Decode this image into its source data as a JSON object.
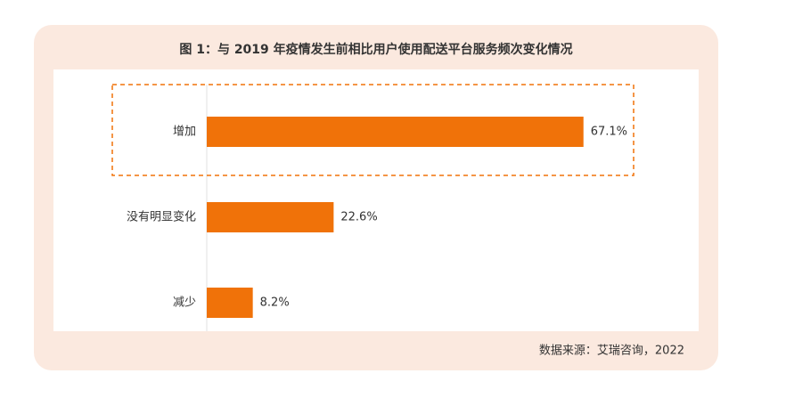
{
  "chart_data": {
    "type": "hbar",
    "title": "图 1：与 2019 年疫情发生前相比用户使用配送平台服务频次变化情况",
    "categories": [
      "增加",
      "没有明显变化",
      "减少"
    ],
    "values": [
      67.1,
      22.6,
      8.2
    ],
    "value_labels": [
      "67.1%",
      "22.6%",
      "8.2%"
    ],
    "color": "#f07209",
    "source": "数据来源：艾瑞咨询，2022"
  }
}
